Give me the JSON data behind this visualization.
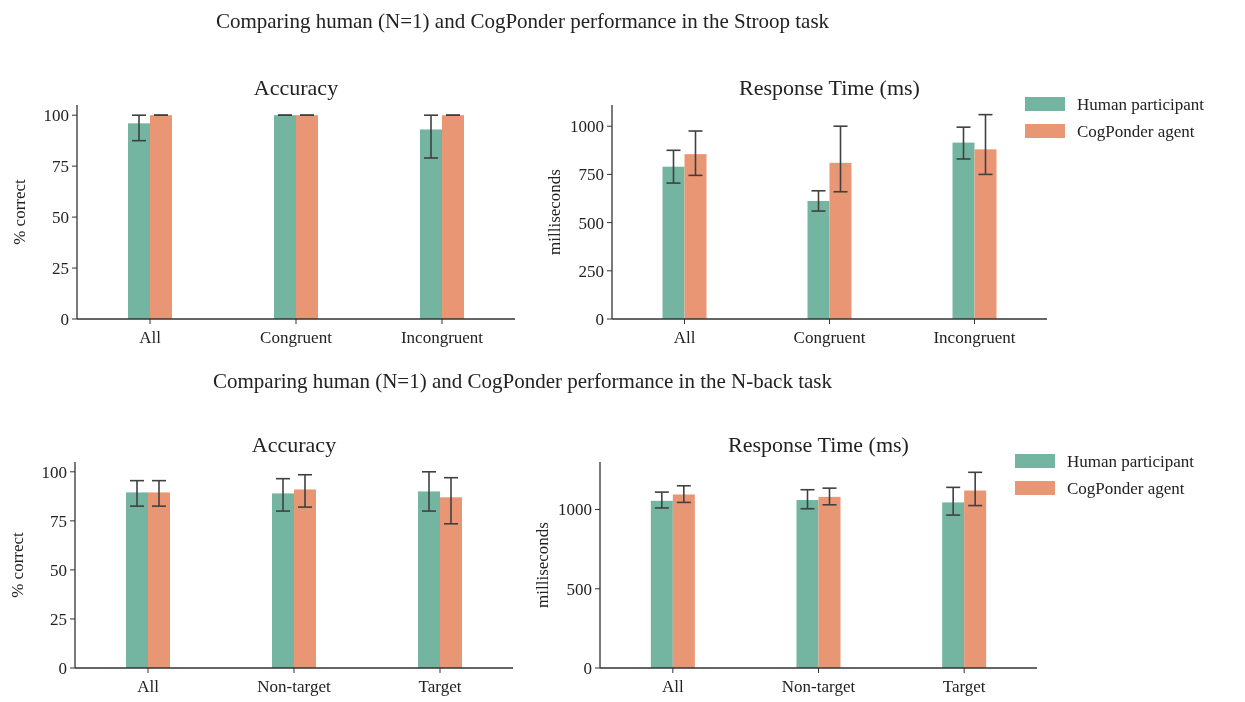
{
  "chart_data": [
    {
      "type": "bar",
      "title": "Accuracy",
      "annotations": [
        "Comparing human (N=1) and CogPonder performance in the Stroop task"
      ],
      "ylabel": "% correct",
      "categories": [
        "All",
        "Congruent",
        "Incongruent"
      ],
      "ylim": [
        0,
        105
      ],
      "yticks": [
        0,
        25,
        50,
        75,
        100
      ],
      "grid": false,
      "legend": false,
      "series": [
        {
          "color": "#73b5a0",
          "values": [
            96,
            100,
            93
          ],
          "errors": [
            [
              87.5,
              100
            ],
            [
              100,
              100
            ],
            [
              79,
              100
            ]
          ]
        },
        {
          "color": "#e89674",
          "values": [
            100,
            100,
            100
          ],
          "errors": [
            [
              100,
              100
            ],
            [
              100,
              100
            ],
            [
              100,
              100
            ]
          ]
        }
      ]
    },
    {
      "type": "bar",
      "title": "Response Time (ms)",
      "ylabel": "milliseconds",
      "categories": [
        "All",
        "Congruent",
        "Incongruent"
      ],
      "ylim": [
        0,
        1110
      ],
      "yticks": [
        0,
        250,
        500,
        750,
        1000
      ],
      "grid": false,
      "legend": "top right",
      "series": [
        {
          "name": "Human participant",
          "color": "#73b5a0",
          "values": [
            790,
            612,
            915
          ],
          "errors": [
            [
              705,
              875
            ],
            [
              560,
              665
            ],
            [
              830,
              995
            ]
          ]
        },
        {
          "name": "CogPonder agent",
          "color": "#e89674",
          "values": [
            855,
            810,
            880
          ],
          "errors": [
            [
              745,
              975
            ],
            [
              660,
              1000
            ],
            [
              750,
              1060
            ]
          ]
        }
      ]
    },
    {
      "type": "bar",
      "title": "Accuracy",
      "annotations": [
        "Comparing human (N=1) and CogPonder performance in the N-back task"
      ],
      "ylabel": "% correct",
      "categories": [
        "All",
        "Non-target",
        "Target"
      ],
      "ylim": [
        0,
        105
      ],
      "yticks": [
        0,
        25,
        50,
        75,
        100
      ],
      "grid": false,
      "legend": false,
      "series": [
        {
          "color": "#73b5a0",
          "values": [
            89.5,
            89,
            90
          ],
          "errors": [
            [
              82.5,
              95.5
            ],
            [
              80,
              96.5
            ],
            [
              80,
              100
            ]
          ]
        },
        {
          "color": "#e89674",
          "values": [
            89.5,
            91,
            87
          ],
          "errors": [
            [
              82.5,
              95.5
            ],
            [
              82,
              98.5
            ],
            [
              73.5,
              97
            ]
          ]
        }
      ]
    },
    {
      "type": "bar",
      "title": "Response Time (ms)",
      "ylabel": "milliseconds",
      "categories": [
        "All",
        "Non-target",
        "Target"
      ],
      "ylim": [
        0,
        1300
      ],
      "yticks": [
        0,
        500,
        1000
      ],
      "grid": false,
      "legend": "top right",
      "series": [
        {
          "name": "Human participant",
          "color": "#73b5a0",
          "values": [
            1055,
            1060,
            1045
          ],
          "errors": [
            [
              1010,
              1110
            ],
            [
              1005,
              1125
            ],
            [
              965,
              1140
            ]
          ]
        },
        {
          "name": "CogPonder agent",
          "color": "#e89674",
          "values": [
            1095,
            1080,
            1120
          ],
          "errors": [
            [
              1045,
              1150
            ],
            [
              1030,
              1135
            ],
            [
              1025,
              1235
            ]
          ]
        }
      ]
    }
  ]
}
